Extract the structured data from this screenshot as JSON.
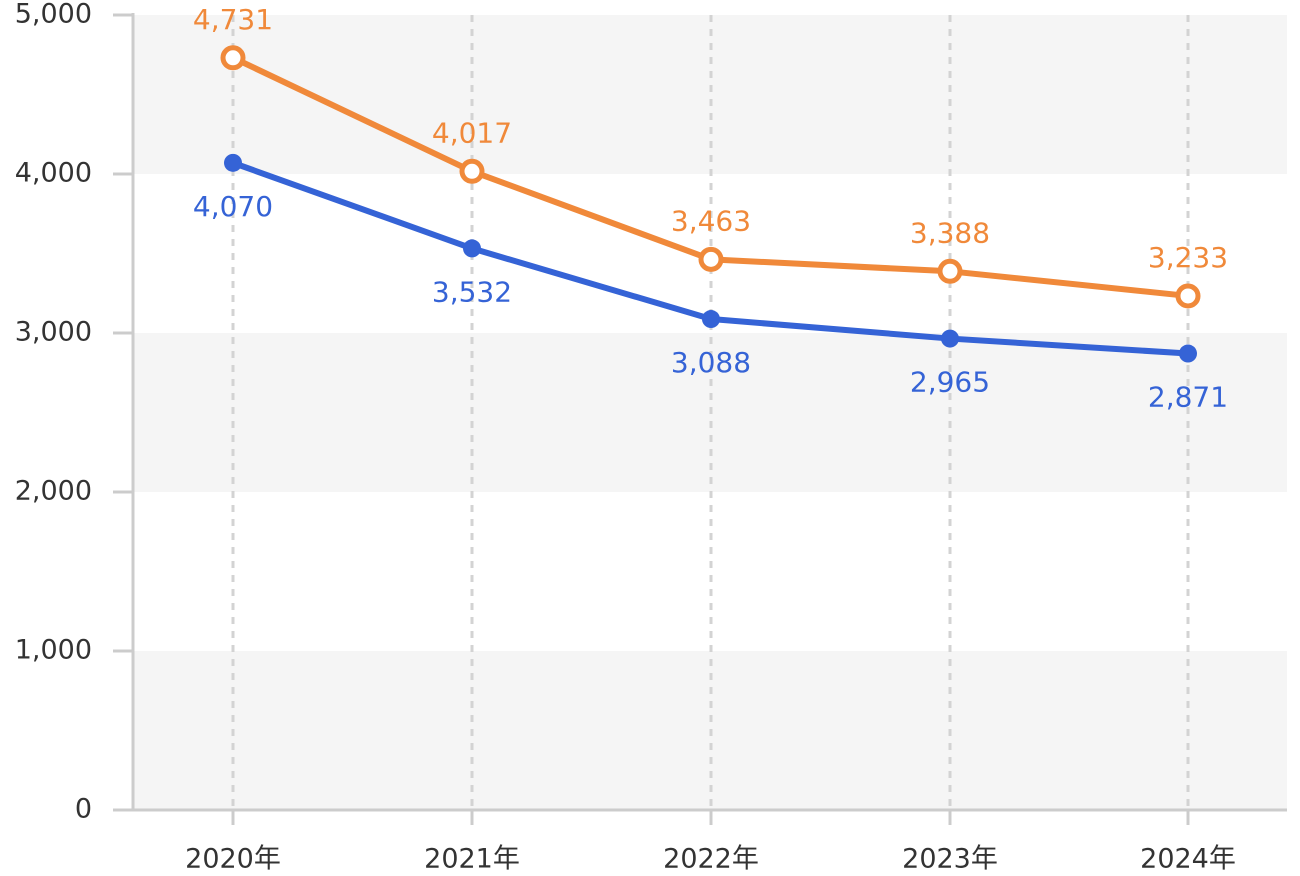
{
  "chart_data": {
    "type": "line",
    "categories": [
      "2020年",
      "2021年",
      "2022年",
      "2023年",
      "2024年"
    ],
    "series": [
      {
        "values": [
          4731,
          4017,
          3463,
          3388,
          3233
        ],
        "color": "#f0893a",
        "marker": "hollow-circle"
      },
      {
        "values": [
          4070,
          3532,
          3088,
          2965,
          2871
        ],
        "color": "#3563d6",
        "marker": "filled-circle"
      }
    ],
    "value_labels": [
      [
        "4,731",
        "4,017",
        "3,463",
        "3,388",
        "3,233"
      ],
      [
        "4,070",
        "3,532",
        "3,088",
        "2,965",
        "2,871"
      ]
    ],
    "title": "",
    "xlabel": "",
    "ylabel": "",
    "ylim": [
      0,
      5000
    ],
    "yticks": [
      0,
      1000,
      2000,
      3000,
      4000,
      5000
    ],
    "ytick_labels": [
      "0",
      "1,000",
      "2,000",
      "3,000",
      "4,000",
      "5,000"
    ],
    "grid": "alternating horizontal bands, dashed vertical lines at categories",
    "legend": "none",
    "colors": {
      "band": "#f5f5f5",
      "axis": "#cccccc",
      "gridline": "#d3d3d3",
      "tick_text": "#333333"
    }
  }
}
